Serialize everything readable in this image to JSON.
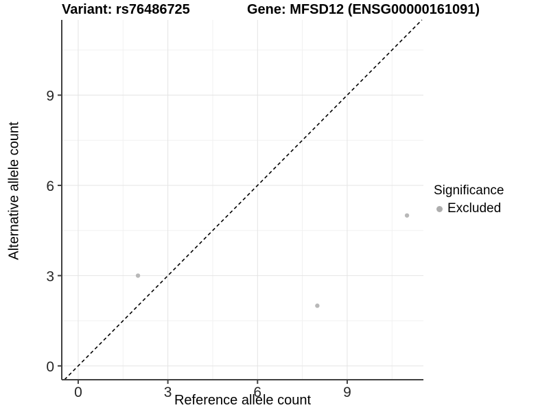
{
  "chart_data": {
    "type": "scatter",
    "title_parts": {
      "variant": "Variant: rs76486725",
      "gene": "Gene: MFSD12 (ENSG00000161091)"
    },
    "xlabel": "Reference allele count",
    "ylabel": "Alternative allele count",
    "x_ticks": [
      0,
      3,
      6,
      9
    ],
    "y_ticks": [
      0,
      3,
      6,
      9
    ],
    "x_minor_ticks": [
      1.5,
      4.5,
      7.5,
      10.5
    ],
    "y_minor_ticks": [
      1.5,
      4.5,
      7.5,
      10.5
    ],
    "xlim": [
      -0.55,
      11.55
    ],
    "ylim": [
      -0.46,
      11.5
    ],
    "grid": true,
    "identity_line": {
      "slope": 1,
      "intercept": 0,
      "style": "dashed",
      "color": "#000000"
    },
    "series": [
      {
        "name": "Excluded",
        "color": "#b8b8b8",
        "points": [
          {
            "x": 2,
            "y": 3
          },
          {
            "x": 8,
            "y": 2
          },
          {
            "x": 11,
            "y": 5
          }
        ]
      }
    ],
    "legend": {
      "title": "Significance",
      "position": "right",
      "items": [
        {
          "label": "Excluded",
          "color": "#adadad",
          "marker": "circle"
        }
      ]
    },
    "colors": {
      "background": "#ffffff",
      "grid_major": "#e4e4e4",
      "grid_minor": "#f1f1f1",
      "axis_line": "#404040",
      "tick_text": "#262626",
      "point": "#b8b8b8"
    }
  }
}
